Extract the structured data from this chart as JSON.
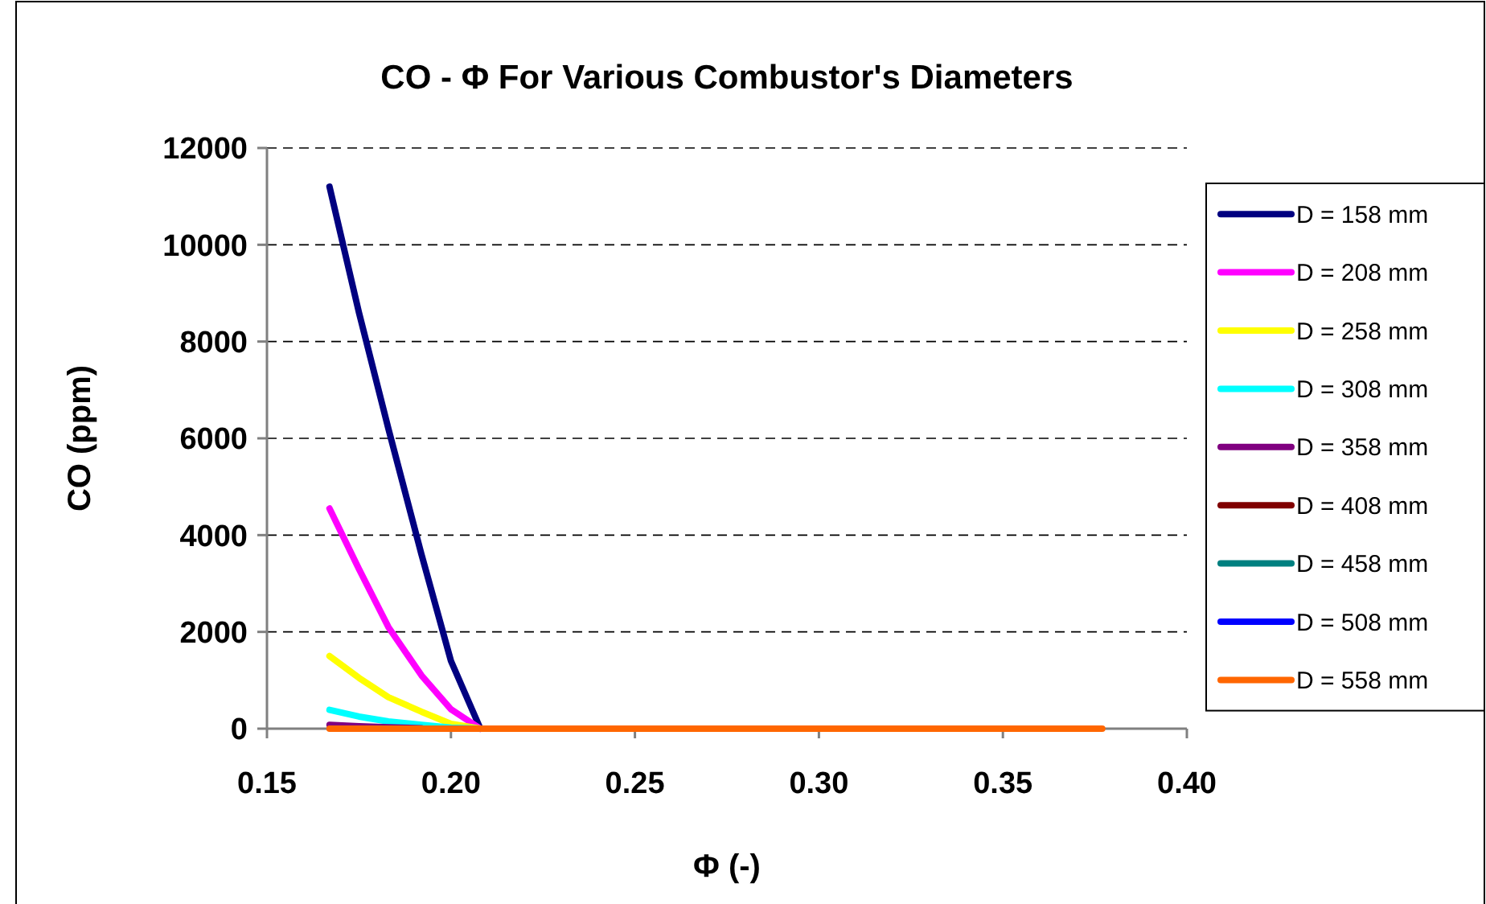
{
  "chart_data": {
    "type": "line",
    "title": "CO - Φ For Various Combustor's Diameters",
    "xlabel": "Φ (-)",
    "ylabel": "CO (ppm)",
    "x": [
      0.167,
      0.175,
      0.183,
      0.192,
      0.2,
      0.208,
      0.25,
      0.3,
      0.35,
      0.377
    ],
    "series": [
      {
        "name": "D = 158 mm",
        "color": "#000080",
        "values": [
          11200,
          8600,
          6200,
          3600,
          1400,
          0,
          null,
          null,
          null,
          null
        ]
      },
      {
        "name": "D = 208 mm",
        "color": "#ff00ff",
        "values": [
          4550,
          3300,
          2100,
          1100,
          400,
          0,
          null,
          null,
          null,
          null
        ]
      },
      {
        "name": "D = 258 mm",
        "color": "#ffff00",
        "values": [
          1500,
          1050,
          650,
          350,
          100,
          0,
          null,
          null,
          null,
          null
        ]
      },
      {
        "name": "D = 308 mm",
        "color": "#00ffff",
        "values": [
          390,
          250,
          150,
          80,
          20,
          0,
          null,
          null,
          null,
          null
        ]
      },
      {
        "name": "D = 358 mm",
        "color": "#800080",
        "values": [
          80,
          50,
          30,
          10,
          null,
          null,
          null,
          null,
          null,
          null
        ]
      },
      {
        "name": "D = 408 mm",
        "color": "#800000",
        "values": [
          null,
          null,
          null,
          null,
          null,
          null,
          null,
          null,
          null,
          null
        ]
      },
      {
        "name": "D = 458 mm",
        "color": "#008080",
        "values": [
          null,
          null,
          null,
          null,
          null,
          null,
          null,
          null,
          null,
          null
        ]
      },
      {
        "name": "D = 508 mm",
        "color": "#0000ff",
        "values": [
          null,
          null,
          null,
          null,
          null,
          null,
          null,
          null,
          null,
          null
        ]
      },
      {
        "name": "D = 558 mm",
        "color": "#ff6600",
        "values": [
          0,
          0,
          0,
          0,
          0,
          0,
          0,
          0,
          0,
          0
        ]
      }
    ],
    "xlim": [
      0.15,
      0.4
    ],
    "xticks": [
      {
        "value": 0.15,
        "label": "0.15"
      },
      {
        "value": 0.2,
        "label": "0.20"
      },
      {
        "value": 0.25,
        "label": "0.25"
      },
      {
        "value": 0.3,
        "label": "0.30"
      },
      {
        "value": 0.35,
        "label": "0.35"
      },
      {
        "value": 0.4,
        "label": "0.40"
      }
    ],
    "ylim": [
      0,
      12000
    ],
    "yticks": [
      0,
      2000,
      4000,
      6000,
      8000,
      10000,
      12000
    ],
    "grid": "y",
    "legend": "right",
    "line_style": "solid",
    "marker": "none"
  }
}
